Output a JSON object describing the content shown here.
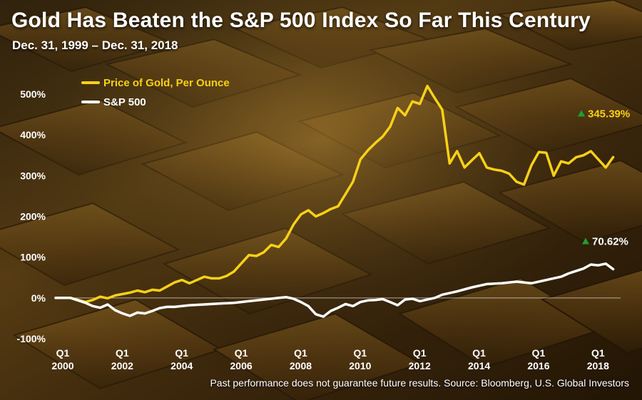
{
  "header": {
    "title": "Gold Has Beaten the S&P 500 Index So Far This Century",
    "subtitle": "Dec. 31, 1999 – Dec. 31, 2018"
  },
  "footer": {
    "source": "Past performance does not guarantee future results.  Source: Bloomberg, U.S. Global Investors"
  },
  "colors": {
    "gold_line": "#f7d117",
    "sp_line": "#ffffff",
    "up_arrow": "#1fa02b",
    "text": "#ffffff"
  },
  "chart_data": {
    "type": "line",
    "title": "Gold Has Beaten the S&P 500 Index So Far This Century",
    "subtitle": "Dec. 31, 1999 – Dec. 31, 2018",
    "xlabel": "",
    "ylabel": "",
    "xlim": [
      2000,
      2019
    ],
    "ylim": [
      -100,
      500
    ],
    "y_ticks": [
      -100,
      0,
      100,
      200,
      300,
      400,
      500
    ],
    "y_tick_labels": [
      "-100%",
      "0%",
      "100%",
      "200%",
      "300%",
      "400%",
      "500%"
    ],
    "x_ticks": [
      {
        "x": 2000,
        "q": "Q1",
        "year": "2000"
      },
      {
        "x": 2002,
        "q": "Q1",
        "year": "2002"
      },
      {
        "x": 2004,
        "q": "Q1",
        "year": "2004"
      },
      {
        "x": 2006,
        "q": "Q1",
        "year": "2006"
      },
      {
        "x": 2008,
        "q": "Q1",
        "year": "2008"
      },
      {
        "x": 2010,
        "q": "Q1",
        "year": "2010"
      },
      {
        "x": 2012,
        "q": "Q1",
        "year": "2012"
      },
      {
        "x": 2014,
        "q": "Q1",
        "year": "2014"
      },
      {
        "x": 2016,
        "q": "Q1",
        "year": "2016"
      },
      {
        "x": 2018,
        "q": "Q1",
        "year": "2018"
      }
    ],
    "legend": {
      "position": "top-left"
    },
    "series": [
      {
        "name": "Price of Gold, Per Ounce",
        "color": "#f7d117",
        "end_label": "345.39%",
        "x": [
          2000.0,
          2000.5,
          2001.0,
          2001.25,
          2001.5,
          2001.75,
          2002.0,
          2002.5,
          2002.75,
          2003.0,
          2003.25,
          2003.5,
          2003.75,
          2004.0,
          2004.25,
          2004.5,
          2005.0,
          2005.25,
          2005.5,
          2005.75,
          2006.0,
          2006.25,
          2006.5,
          2006.75,
          2007.0,
          2007.25,
          2007.5,
          2007.75,
          2008.0,
          2008.25,
          2008.5,
          2008.75,
          2009.0,
          2009.25,
          2009.5,
          2009.75,
          2010.0,
          2010.25,
          2010.5,
          2010.75,
          2011.0,
          2011.25,
          2011.5,
          2011.75,
          2012.0,
          2012.25,
          2012.5,
          2012.75,
          2013.0,
          2013.25,
          2013.5,
          2013.75,
          2014.0,
          2014.25,
          2014.5,
          2014.75,
          2015.0,
          2015.25,
          2015.5,
          2015.75,
          2016.0,
          2016.25,
          2016.5,
          2016.75,
          2017.0,
          2017.25,
          2017.5,
          2017.75,
          2018.0,
          2018.25,
          2018.5,
          2018.75
        ],
        "values": [
          0,
          0,
          -10,
          -5,
          3,
          -1,
          6,
          13,
          18,
          14,
          20,
          18,
          28,
          38,
          44,
          36,
          52,
          48,
          48,
          54,
          65,
          85,
          105,
          103,
          112,
          130,
          125,
          146,
          180,
          205,
          215,
          200,
          208,
          218,
          225,
          255,
          285,
          340,
          362,
          380,
          396,
          420,
          466,
          448,
          482,
          476,
          520,
          490,
          462,
          330,
          360,
          320,
          338,
          355,
          320,
          315,
          312,
          305,
          285,
          278,
          325,
          358,
          356,
          300,
          335,
          330,
          345,
          350,
          360,
          340,
          320,
          345.39
        ]
      },
      {
        "name": "S&P 500",
        "color": "#ffffff",
        "end_label": "70.62%",
        "x": [
          2000.0,
          2000.5,
          2001.0,
          2001.25,
          2001.5,
          2001.75,
          2002.0,
          2002.25,
          2002.5,
          2002.75,
          2003.0,
          2003.25,
          2003.5,
          2003.75,
          2004.0,
          2004.5,
          2005.0,
          2005.5,
          2006.0,
          2006.5,
          2007.0,
          2007.5,
          2007.75,
          2008.0,
          2008.25,
          2008.5,
          2008.75,
          2009.0,
          2009.25,
          2009.5,
          2009.75,
          2010.0,
          2010.25,
          2010.5,
          2010.75,
          2011.0,
          2011.25,
          2011.5,
          2011.75,
          2012.0,
          2012.25,
          2012.5,
          2012.75,
          2013.0,
          2013.5,
          2014.0,
          2014.5,
          2015.0,
          2015.5,
          2016.0,
          2016.5,
          2017.0,
          2017.25,
          2017.5,
          2017.75,
          2018.0,
          2018.25,
          2018.5,
          2018.75
        ],
        "values": [
          0,
          0,
          -12,
          -20,
          -24,
          -16,
          -30,
          -38,
          -44,
          -36,
          -38,
          -32,
          -25,
          -22,
          -22,
          -18,
          -16,
          -14,
          -12,
          -8,
          -4,
          0,
          2,
          -2,
          -10,
          -20,
          -40,
          -46,
          -32,
          -24,
          -15,
          -20,
          -10,
          -6,
          -5,
          -3,
          -10,
          -18,
          -4,
          -2,
          -8,
          -4,
          0,
          8,
          16,
          26,
          34,
          36,
          40,
          36,
          44,
          52,
          60,
          66,
          72,
          82,
          80,
          84,
          70.62
        ]
      }
    ]
  }
}
